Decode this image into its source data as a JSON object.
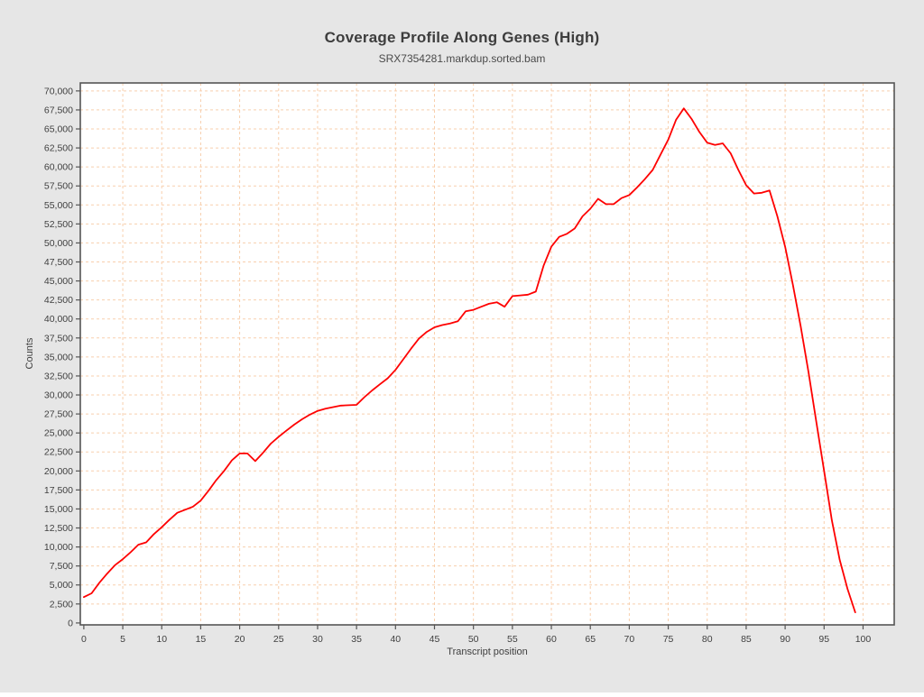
{
  "header": {
    "title": "Coverage Profile Along Genes (High)",
    "subtitle": "SRX7354281.markdup.sorted.bam"
  },
  "colors": {
    "page_background": "#e6e6e6",
    "plot_background": "#ffffff",
    "grid": "#f8cfad",
    "axis": "#555555",
    "text": "#3f3f3f",
    "line": "#fe0101"
  },
  "chart_data": {
    "type": "line",
    "title": "Coverage Profile Along Genes (High)",
    "subtitle": "SRX7354281.markdup.sorted.bam",
    "xlabel": "Transcript position",
    "ylabel": "Counts",
    "x_range": [
      -0.45,
      104
    ],
    "y_range": [
      -250,
      71050
    ],
    "x_ticks": [
      0,
      5,
      10,
      15,
      20,
      25,
      30,
      35,
      40,
      45,
      50,
      55,
      60,
      65,
      70,
      75,
      80,
      85,
      90,
      95,
      100
    ],
    "y_ticks": [
      0,
      2500,
      5000,
      7500,
      10000,
      12500,
      15000,
      17500,
      20000,
      22500,
      25000,
      27500,
      30000,
      32500,
      35000,
      37500,
      40000,
      42500,
      45000,
      47500,
      50000,
      52500,
      55000,
      57500,
      60000,
      62500,
      65000,
      67500,
      70000
    ],
    "grid": true,
    "legend": "none",
    "series": [
      {
        "name": "Coverage",
        "color": "#fe0101",
        "x_start": 0,
        "x_step": 1,
        "values": [
          3400,
          3900,
          5300,
          6500,
          7600,
          8400,
          9300,
          10300,
          10600,
          11700,
          12600,
          13600,
          14500,
          14900,
          15300,
          16100,
          17400,
          18800,
          20000,
          21400,
          22300,
          22300,
          21300,
          22400,
          23600,
          24500,
          25300,
          26100,
          26800,
          27400,
          27900,
          28200,
          28400,
          28600,
          28650,
          28700,
          29700,
          30600,
          31400,
          32200,
          33300,
          34700,
          36100,
          37400,
          38300,
          38900,
          39200,
          39400,
          39700,
          41000,
          41200,
          41600,
          42000,
          42200,
          41600,
          43000,
          43100,
          43200,
          43600,
          47000,
          49500,
          50800,
          51200,
          51900,
          53500,
          54500,
          55800,
          55100,
          55100,
          55900,
          56300,
          57300,
          58400,
          59600,
          61600,
          63600,
          66200,
          67700,
          66300,
          64600,
          63200,
          62900,
          63100,
          61800,
          59600,
          57600,
          56500,
          56600,
          56900,
          53500,
          49500,
          44500,
          39000,
          33000,
          26500,
          20000,
          13500,
          8300,
          4500,
          1400
        ]
      }
    ]
  }
}
